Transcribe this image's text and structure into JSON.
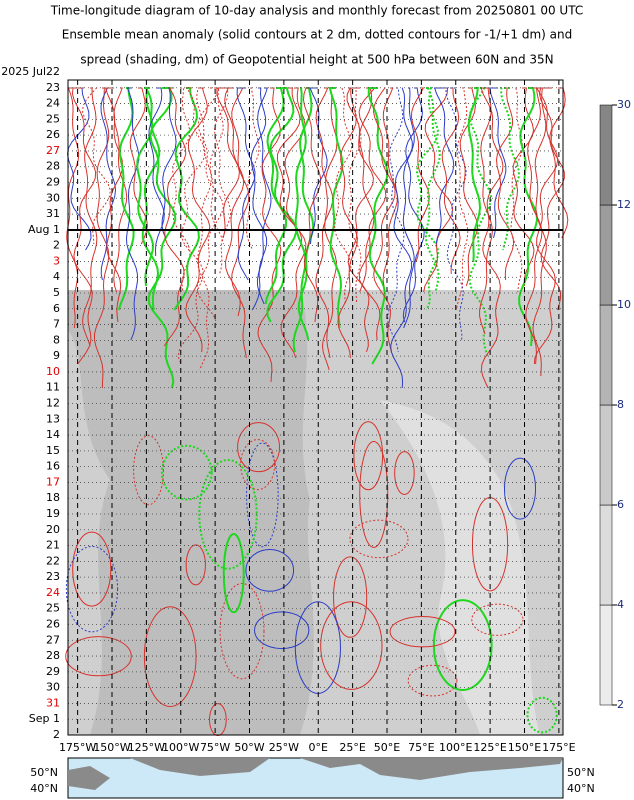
{
  "chart_data": {
    "type": "hovmoller",
    "title": [
      "Time-longitude diagram of 10-day analysis and monthly forecast from 20250801 00 UTC",
      "Ensemble mean anomaly (solid contours at 2 dm, dotted contours for -1/+1 dm) and",
      "spread (shading, dm) of Geopotential height at 500 hPa between 60N and 35N"
    ],
    "y_categories": [
      "2025  Jul22",
      "23",
      "24",
      "25",
      "26",
      "27",
      "28",
      "29",
      "30",
      "31",
      "Aug  1",
      "2",
      "3",
      "4",
      "5",
      "6",
      "7",
      "8",
      "9",
      "10",
      "11",
      "12",
      "13",
      "14",
      "15",
      "16",
      "17",
      "18",
      "19",
      "20",
      "21",
      "22",
      "23",
      "24",
      "25",
      "26",
      "27",
      "28",
      "29",
      "30",
      "31",
      "Sep  1",
      "2"
    ],
    "y_label_colors": [
      "#000",
      "#000",
      "#000",
      "#000",
      "#000",
      "#e00000",
      "#000",
      "#000",
      "#000",
      "#000",
      "#000",
      "#000",
      "#e00000",
      "#000",
      "#000",
      "#000",
      "#000",
      "#000",
      "#000",
      "#e00000",
      "#000",
      "#000",
      "#000",
      "#000",
      "#000",
      "#000",
      "#e00000",
      "#000",
      "#000",
      "#000",
      "#000",
      "#000",
      "#000",
      "#e00000",
      "#000",
      "#000",
      "#000",
      "#000",
      "#000",
      "#000",
      "#e00000",
      "#000",
      "#000"
    ],
    "xlim": [
      -182,
      178
    ],
    "xticks": [
      {
        "value": -175,
        "label": "175°W"
      },
      {
        "value": -150,
        "label": "150°W"
      },
      {
        "value": -125,
        "label": "125°W"
      },
      {
        "value": -100,
        "label": "100°W"
      },
      {
        "value": -75,
        "label": "75°W"
      },
      {
        "value": -50,
        "label": "50°W"
      },
      {
        "value": -25,
        "label": "25°W"
      },
      {
        "value": 0,
        "label": "0°E"
      },
      {
        "value": 25,
        "label": "25°E"
      },
      {
        "value": 50,
        "label": "50°E"
      },
      {
        "value": 75,
        "label": "75°E"
      },
      {
        "value": 100,
        "label": "100°E"
      },
      {
        "value": 125,
        "label": "125°E"
      },
      {
        "value": 150,
        "label": "150°E"
      },
      {
        "value": 175,
        "label": "175°E"
      }
    ],
    "colorbar": {
      "ticks": [
        2,
        4,
        6,
        8,
        10,
        12,
        30
      ],
      "colors": [
        "#ececec",
        "#dcdcdc",
        "#cacaca",
        "#b4b4b4",
        "#9c9c9c",
        "#868686"
      ]
    },
    "map": {
      "lat_labels": [
        "50°N",
        "40°N"
      ]
    }
  }
}
